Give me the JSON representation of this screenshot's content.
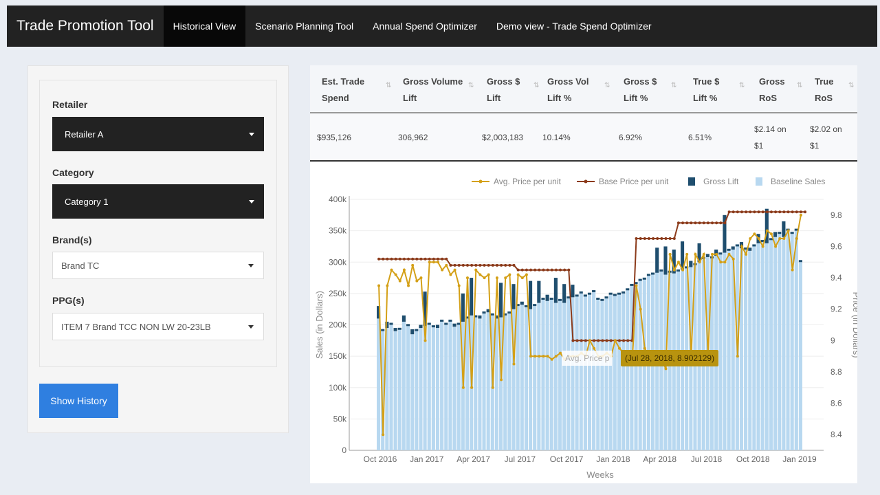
{
  "app": {
    "title": "Trade Promotion Tool",
    "nav": [
      "Historical View",
      "Scenario Planning Tool",
      "Annual Spend Optimizer",
      "Demo view - Trade Spend Optimizer"
    ]
  },
  "sidebar": {
    "retailer": {
      "label": "Retailer",
      "value": "Retailer A"
    },
    "category": {
      "label": "Category",
      "value": "Category 1"
    },
    "brands": {
      "label": "Brand(s)",
      "value": "Brand TC"
    },
    "ppgs": {
      "label": "PPG(s)",
      "value": "ITEM 7 Brand TCC NON LW 20-23LB"
    },
    "button": "Show History"
  },
  "kpi_table": {
    "headers": [
      [
        "Est. Trade",
        "Spend"
      ],
      [
        "Gross Volume",
        "Lift"
      ],
      [
        "Gross $",
        "Lift"
      ],
      [
        "Gross Vol",
        "Lift %"
      ],
      [
        "Gross $",
        "Lift %"
      ],
      [
        "True $",
        "Lift %"
      ],
      [
        "Gross",
        "RoS"
      ],
      [
        "True",
        "RoS"
      ]
    ],
    "row": [
      [
        "$935,126"
      ],
      [
        "306,962"
      ],
      [
        "$2,003,183"
      ],
      [
        "10.14%"
      ],
      [
        "6.92%"
      ],
      [
        "6.51%"
      ],
      [
        "$2.14 on",
        "$1"
      ],
      [
        "$2.02 on",
        "$1"
      ]
    ]
  },
  "tooltip": {
    "hover_label": "Avg. Price p",
    "value": "(Jul 28, 2018, 8.902129)"
  },
  "chart_data": {
    "type": "bar",
    "xlabel": "Weeks",
    "ylabel": "Sales (in Dollars)",
    "ylabel_right": "Price (in Dollars)",
    "ylim": [
      0,
      400000
    ],
    "ylim_right": [
      8.3,
      9.9
    ],
    "y_ticks": [
      "0",
      "50k",
      "100k",
      "150k",
      "200k",
      "250k",
      "300k",
      "350k",
      "400k"
    ],
    "y_right_ticks": [
      "8.4",
      "8.6",
      "8.8",
      "9",
      "9.2",
      "9.4",
      "9.6",
      "9.8"
    ],
    "x_ticks": [
      "Oct 2016",
      "Jan 2017",
      "Apr 2017",
      "Jul 2017",
      "Oct 2017",
      "Jan 2018",
      "Apr 2018",
      "Jul 2018",
      "Oct 2018",
      "Jan 2019"
    ],
    "legend": [
      "Avg. Price per unit",
      "Base Price per unit",
      "Gross Lift",
      "Baseline Sales"
    ],
    "legend_position": "top-right",
    "colors": {
      "avg": "#d4a017",
      "base": "#8b3a1a",
      "lift": "#1f4e6e",
      "baseline": "#b8d8f0"
    },
    "weeks_start": "2016-09-18",
    "baseline": [
      210,
      190,
      195,
      200,
      190,
      192,
      205,
      198,
      185,
      190,
      195,
      198,
      200,
      196,
      195,
      205,
      200,
      205,
      197,
      200,
      205,
      210,
      215,
      212,
      210,
      218,
      220,
      215,
      210,
      212,
      215,
      218,
      225,
      230,
      232,
      228,
      225,
      230,
      235,
      240,
      238,
      240,
      235,
      238,
      235,
      242,
      244,
      245,
      250,
      245,
      248,
      252,
      240,
      238,
      242,
      248,
      246,
      248,
      250,
      255,
      262,
      265,
      270,
      272,
      278,
      280,
      283,
      285,
      280,
      283,
      282,
      285,
      288,
      290,
      292,
      295,
      300,
      305,
      308,
      306,
      310,
      312,
      315,
      318,
      320,
      325,
      322,
      320,
      318,
      325,
      330,
      332,
      330,
      335,
      340,
      345,
      340,
      350,
      345,
      350,
      300
    ],
    "lift": [
      20,
      0,
      10,
      0,
      5,
      0,
      10,
      0,
      8,
      0,
      5,
      55,
      0,
      0,
      5,
      0,
      0,
      0,
      5,
      0,
      45,
      0,
      60,
      0,
      5,
      0,
      5,
      0,
      5,
      55,
      0,
      0,
      40,
      0,
      5,
      0,
      45,
      0,
      35,
      0,
      10,
      0,
      40,
      0,
      30,
      0,
      20,
      0,
      0,
      0,
      0,
      0,
      0,
      0,
      0,
      0,
      0,
      0,
      0,
      0,
      0,
      0,
      0,
      0,
      0,
      0,
      40,
      0,
      45,
      0,
      38,
      0,
      45,
      0,
      10,
      0,
      30,
      0,
      5,
      0,
      10,
      0,
      60,
      0,
      5,
      0,
      10,
      0,
      5,
      0,
      15,
      0,
      55,
      0,
      8,
      0,
      25,
      0,
      0,
      0,
      0
    ],
    "avg_price": [
      9.35,
      8.4,
      9.35,
      9.45,
      9.42,
      9.38,
      9.45,
      9.35,
      9.48,
      9.38,
      9.4,
      9.0,
      9.5,
      9.5,
      9.5,
      9.45,
      9.48,
      9.42,
      9.45,
      9.35,
      8.7,
      9.4,
      8.7,
      9.45,
      9.42,
      9.4,
      9.42,
      8.7,
      9.4,
      8.75,
      9.4,
      9.42,
      8.85,
      9.42,
      9.4,
      9.42,
      8.9,
      8.9,
      8.9,
      8.9,
      8.9,
      8.88,
      8.9,
      8.92,
      8.88,
      8.9,
      8.9,
      8.9,
      8.92,
      8.9,
      9.0,
      8.95,
      8.9,
      8.9,
      8.92,
      8.9,
      9.0,
      8.95,
      8.92,
      8.9,
      8.85,
      9.35,
      9.2,
      8.95,
      8.9,
      8.9,
      8.9,
      8.88,
      8.82,
      9.55,
      9.45,
      9.5,
      9.45,
      9.55,
      8.9,
      9.55,
      9.5,
      9.55,
      8.9,
      9.55,
      9.55,
      9.5,
      9.5,
      9.55,
      9.52,
      8.9,
      9.6,
      9.55,
      9.65,
      9.68,
      9.65,
      9.6,
      9.7,
      9.68,
      9.6,
      9.65,
      9.65,
      9.7,
      9.45,
      9.65,
      9.8
    ],
    "base_price": [
      9.52,
      9.52,
      9.52,
      9.52,
      9.52,
      9.52,
      9.52,
      9.52,
      9.52,
      9.52,
      9.52,
      9.52,
      9.52,
      9.52,
      9.52,
      9.52,
      9.52,
      9.48,
      9.48,
      9.48,
      9.48,
      9.48,
      9.48,
      9.48,
      9.48,
      9.48,
      9.48,
      9.48,
      9.48,
      9.48,
      9.48,
      9.48,
      9.48,
      9.45,
      9.45,
      9.45,
      9.45,
      9.45,
      9.45,
      9.45,
      9.45,
      9.45,
      9.45,
      9.45,
      9.45,
      9.45,
      9.0,
      9.0,
      9.0,
      9.0,
      9.0,
      9.0,
      9.0,
      9.0,
      9.0,
      9.0,
      9.0,
      9.0,
      9.0,
      9.0,
      9.0,
      9.65,
      9.65,
      9.65,
      9.65,
      9.65,
      9.65,
      9.65,
      9.65,
      9.65,
      9.65,
      9.75,
      9.75,
      9.75,
      9.75,
      9.75,
      9.75,
      9.75,
      9.75,
      9.75,
      9.75,
      9.75,
      9.75,
      9.82,
      9.82,
      9.82,
      9.82,
      9.82,
      9.82,
      9.82,
      9.82,
      9.82,
      9.82,
      9.82,
      9.82,
      9.82,
      9.82,
      9.82,
      9.82,
      9.82,
      9.82,
      9.82
    ]
  }
}
